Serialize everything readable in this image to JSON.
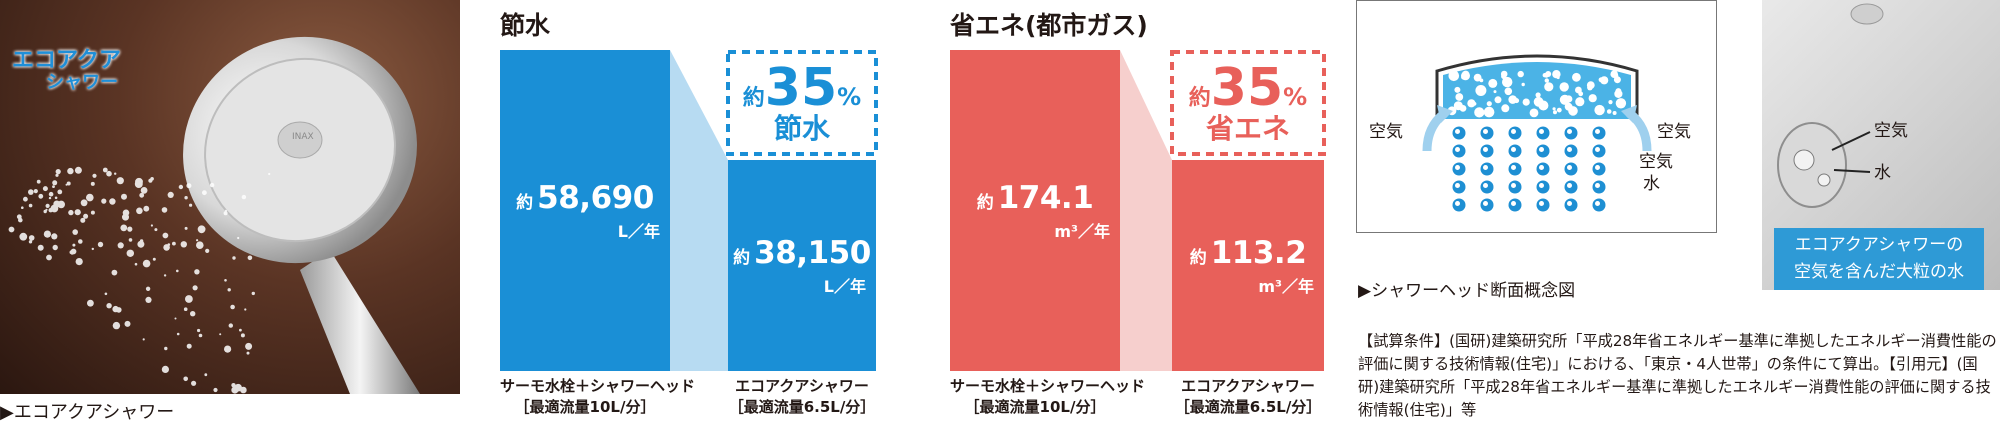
{
  "photo": {
    "logo_line1": "エコアクア",
    "logo_line2": "シャワー",
    "head_mark": "INAX",
    "caption": "▶エコアクアシャワー"
  },
  "charts": {
    "water": {
      "title": "節水",
      "before": {
        "prefix": "約",
        "value": "58,690",
        "unit": "L／年",
        "label1": "サーモ水栓＋シャワーヘッド",
        "label2": "［最適流量10L/分］"
      },
      "after": {
        "prefix": "約",
        "value": "38,150",
        "unit": "L／年",
        "label1": "エコアクアシャワー",
        "label2": "［最適流量6.5L/分］"
      },
      "badge": {
        "prefix": "約",
        "value": "35",
        "unit": "%",
        "label": "節水"
      },
      "color": "#1a8fd6",
      "fade_color": "#b7dbf2"
    },
    "energy": {
      "title": "省エネ(都市ガス)",
      "before": {
        "prefix": "約",
        "value": "174.1",
        "unit": "m³／年",
        "label1": "サーモ水栓＋シャワーヘッド",
        "label2": "［最適流量10L/分］"
      },
      "after": {
        "prefix": "約",
        "value": "113.2",
        "unit": "m³／年",
        "label1": "エコアクアシャワー",
        "label2": "［最適流量6.5L/分］"
      },
      "badge": {
        "prefix": "約",
        "value": "35",
        "unit": "%",
        "label": "省エネ"
      },
      "color": "#e8605a",
      "fade_color": "#f6cfcd"
    }
  },
  "chart_data": [
    {
      "type": "bar",
      "title": "節水",
      "categories": [
        "サーモ水栓＋シャワーヘッド［最適流量10L/分］",
        "エコアクアシャワー［最適流量6.5L/分］"
      ],
      "values": [
        58690,
        38150
      ],
      "unit": "L／年"
    },
    {
      "type": "bar",
      "title": "省エネ(都市ガス)",
      "categories": [
        "サーモ水栓＋シャワーヘッド［最適流量10L/分］",
        "エコアクアシャワー［最適流量6.5L/分］"
      ],
      "values": [
        174.1,
        113.2
      ],
      "unit": "m³／年"
    }
  ],
  "diagram": {
    "air_left": "空気",
    "air_right": "空気",
    "air_small": "空気",
    "water_small": "水",
    "caption": "▶シャワーヘッド断面概念図"
  },
  "closeup": {
    "air_label": "空気",
    "water_label": "水",
    "caption_line1": "エコアクアシャワーの",
    "caption_line2": "空気を含んだ大粒の水"
  },
  "note": "【試算条件】(国研)建築研究所「平成28年省エネルギー基準に準拠したエネルギー消費性能の評価に関する技術情報(住宅)」における、「東京・4人世帯」の条件にて算出。【引用元】(国研)建築研究所「平成28年省エネルギー基準に準拠したエネルギー消費性能の評価に関する技術情報(住宅)」等"
}
